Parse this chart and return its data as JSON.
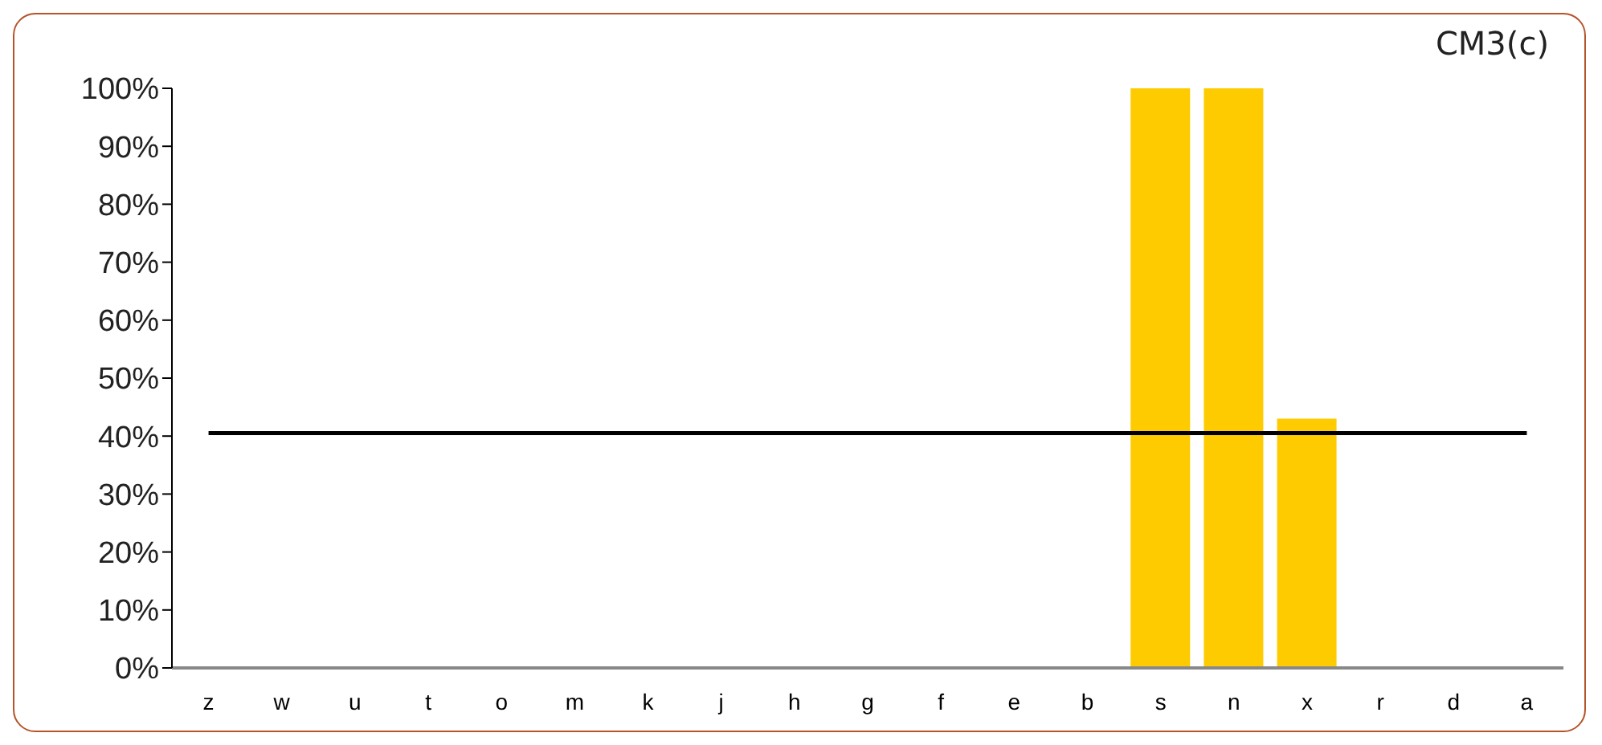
{
  "chart_data": {
    "type": "bar",
    "title": "CM3(c)",
    "categories": [
      "z",
      "w",
      "u",
      "t",
      "o",
      "m",
      "k",
      "j",
      "h",
      "g",
      "f",
      "e",
      "b",
      "s",
      "n",
      "x",
      "r",
      "d",
      "a"
    ],
    "series": [
      {
        "color": "#fecb00",
        "values": [
          0,
          0,
          0,
          0,
          0,
          0,
          0,
          0,
          0,
          0,
          0,
          0,
          0,
          100,
          100,
          43,
          0,
          0,
          0
        ]
      },
      {
        "type": "line",
        "color": "#000000",
        "values": [
          40.5,
          40.5,
          40.5,
          40.5,
          40.5,
          40.5,
          40.5,
          40.5,
          40.5,
          40.5,
          40.5,
          40.5,
          40.5,
          40.5,
          40.5,
          40.5,
          40.5,
          40.5,
          40.5
        ]
      }
    ],
    "ylim": [
      0,
      100
    ],
    "yticks": [
      {
        "value": 0,
        "label": "0%"
      },
      {
        "value": 10,
        "label": "10%"
      },
      {
        "value": 20,
        "label": "20%"
      },
      {
        "value": 30,
        "label": "30%"
      },
      {
        "value": 40,
        "label": "40%"
      },
      {
        "value": 50,
        "label": "50%"
      },
      {
        "value": 60,
        "label": "60%"
      },
      {
        "value": 70,
        "label": "70%"
      },
      {
        "value": 80,
        "label": "80%"
      },
      {
        "value": 90,
        "label": "90%"
      },
      {
        "value": 100,
        "label": "100%"
      }
    ],
    "grid": false,
    "legend": false,
    "marker": "none",
    "line_style": "solid"
  }
}
